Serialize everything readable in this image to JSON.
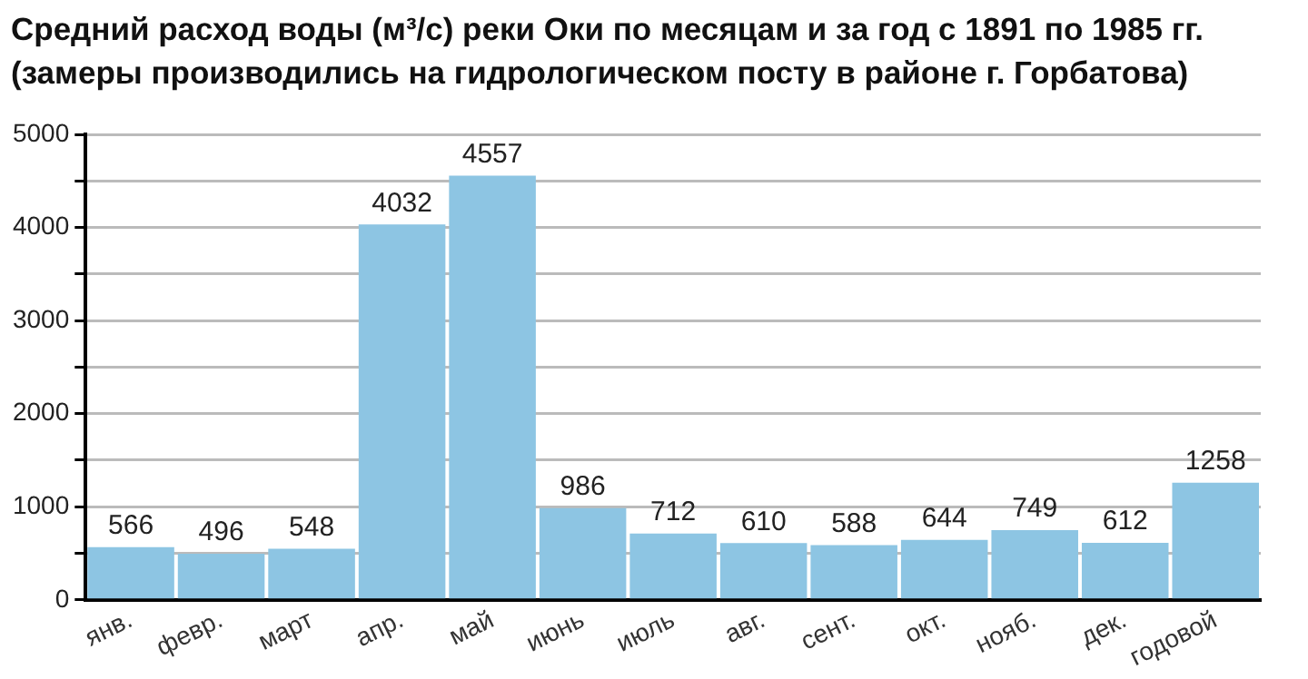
{
  "chart_data": {
    "type": "bar",
    "title": "Средний расход воды (м³/с) реки Оки по месяцам и за год с 1891 по 1985 гг.",
    "subtitle": "(замеры производились на гидрологическом посту в районе г. Горбатова)",
    "categories": [
      "янв.",
      "февр.",
      "март",
      "апр.",
      "май",
      "июнь",
      "июль",
      "авг.",
      "сент.",
      "окт.",
      "нояб.",
      "дек.",
      "годовой"
    ],
    "values": [
      566,
      496,
      548,
      4032,
      4557,
      986,
      712,
      610,
      588,
      644,
      749,
      612,
      1258
    ],
    "color": "#8dc5e3",
    "ylim": [
      0,
      5000
    ],
    "yticks": [
      0,
      {
        "value": 500,
        "label": null
      },
      1000,
      {
        "value": 1500,
        "label": null
      },
      2000,
      {
        "value": 2500,
        "label": null
      },
      3000,
      {
        "value": 3500,
        "label": null
      },
      4000,
      {
        "value": 4500,
        "label": null
      },
      5000
    ],
    "grid": true,
    "data_labels": true
  }
}
